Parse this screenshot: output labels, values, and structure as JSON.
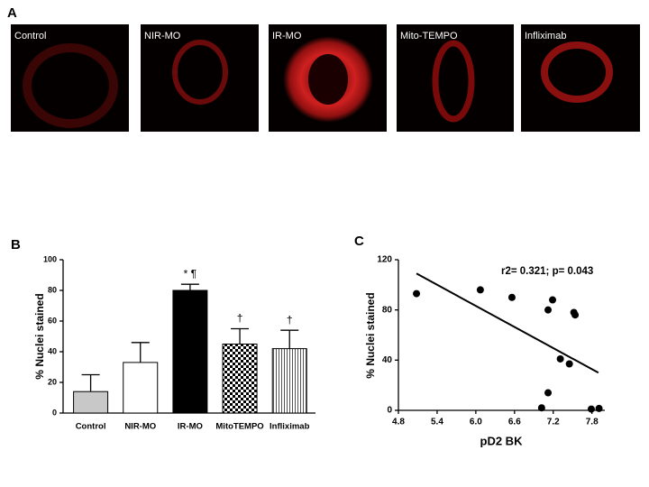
{
  "panels": {
    "a": {
      "label": "A",
      "images": [
        "Control",
        "NIR-MO",
        "IR-MO",
        "Mito-TEMPO",
        "Infliximab"
      ]
    }
  },
  "chart_data": [
    {
      "type": "bar",
      "panel_label": "B",
      "y_label": "% Nuclei stained",
      "categories": [
        "Control",
        "NIR-MO",
        "IR-MO",
        "MitoTEMPO",
        "Infliximab"
      ],
      "values": [
        14,
        33,
        80,
        45,
        42
      ],
      "errors": [
        11,
        13,
        4,
        10,
        12
      ],
      "annotations": [
        null,
        null,
        "* ¶",
        "†",
        "†"
      ],
      "fills": [
        "#c8c8c8",
        "#ffffff",
        "#000000",
        "checkerboard",
        "vertical-stripes"
      ],
      "ylim": [
        0,
        100
      ],
      "yticks": [
        0,
        20,
        40,
        60,
        80,
        100
      ]
    },
    {
      "type": "scatter",
      "panel_label": "C",
      "x_label": "pD2 BK",
      "y_label": "% Nuclei stained",
      "annotation": "r2= 0.321; p= 0.043",
      "x": [
        5.08,
        6.07,
        6.56,
        7.12,
        7.19,
        7.12,
        7.02,
        7.31,
        7.45,
        7.52,
        7.54,
        7.79,
        7.91
      ],
      "y": [
        93,
        96,
        90,
        80,
        88,
        14,
        2,
        41,
        37,
        78,
        76,
        1,
        1.5
      ],
      "fit": {
        "x": [
          5.08,
          7.9
        ],
        "y": [
          109,
          30
        ]
      },
      "color": "#000000",
      "xlim": [
        4.8,
        8.0
      ],
      "xticks": [
        4.8,
        5.4,
        {
          "value": 6,
          "label": "6.0"
        },
        6.6,
        7.2,
        7.8
      ],
      "ylim": [
        0,
        120
      ],
      "yticks": [
        0,
        40,
        80,
        120
      ]
    }
  ]
}
